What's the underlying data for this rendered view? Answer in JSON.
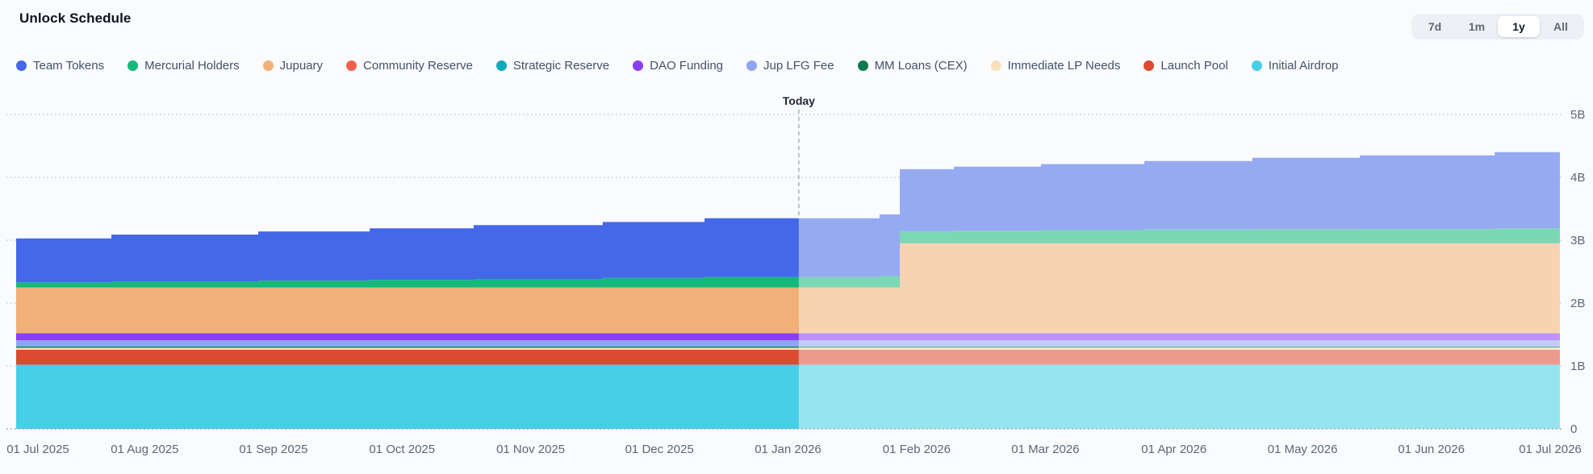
{
  "header": {
    "title": "Unlock Schedule"
  },
  "range_selector": {
    "options": [
      {
        "label": "7d",
        "active": false
      },
      {
        "label": "1m",
        "active": false
      },
      {
        "label": "1y",
        "active": true
      },
      {
        "label": "All",
        "active": false
      }
    ]
  },
  "legend_order": [
    "team-tokens",
    "mercurial-holders",
    "jupuary",
    "community-reserve",
    "strategic-reserve",
    "dao-funding",
    "jup-lfg-fee",
    "mm-loans-cex",
    "immediate-lp-needs",
    "launch-pool",
    "initial-airdrop"
  ],
  "chart_data": {
    "type": "area",
    "variant": "stacked-step",
    "title": "Unlock Schedule",
    "xlabel": "",
    "ylabel": "",
    "y_unit_note": "billions of tokens unlocked",
    "ylim": [
      0,
      5
    ],
    "y_ticks": [
      "0",
      "1B",
      "2B",
      "3B",
      "4B",
      "5B"
    ],
    "grid": "dotted-horizontal",
    "legend_position": "top",
    "x_ticks": [
      {
        "label": "01 Jul 2025",
        "f": 0.0
      },
      {
        "label": "01 Aug 2025",
        "f": 0.0833
      },
      {
        "label": "01 Sep 2025",
        "f": 0.1667
      },
      {
        "label": "01 Oct 2025",
        "f": 0.25
      },
      {
        "label": "01 Nov 2025",
        "f": 0.3333
      },
      {
        "label": "01 Dec 2025",
        "f": 0.4167
      },
      {
        "label": "01 Jan 2026",
        "f": 0.5
      },
      {
        "label": "01 Feb 2026",
        "f": 0.5833
      },
      {
        "label": "01 Mar 2026",
        "f": 0.6667
      },
      {
        "label": "01 Apr 2026",
        "f": 0.75
      },
      {
        "label": "01 May 2026",
        "f": 0.8333
      },
      {
        "label": "01 Jun 2026",
        "f": 0.9167
      },
      {
        "label": "01 Jul 2026",
        "f": 1.0
      }
    ],
    "today": {
      "label": "Today",
      "f": 0.507
    },
    "future_fade_mix": 0.44,
    "breakpoints": [
      0,
      0.0617,
      0.1568,
      0.229,
      0.2964,
      0.38,
      0.4459,
      0.5593,
      0.5724,
      0.6074,
      0.6639,
      0.7308,
      0.8008,
      0.8704,
      0.9577
    ],
    "series": [
      {
        "id": "initial-airdrop",
        "name": "Initial Airdrop",
        "color": "#46cfe6",
        "values": [
          1.02,
          1.02,
          1.02,
          1.02,
          1.02,
          1.02,
          1.02,
          1.02,
          1.02,
          1.02,
          1.02,
          1.02,
          1.02,
          1.02,
          1.02
        ]
      },
      {
        "id": "launch-pool",
        "name": "Launch Pool",
        "color": "#dc4a31",
        "values": [
          0.24,
          0.24,
          0.24,
          0.24,
          0.24,
          0.24,
          0.24,
          0.24,
          0.24,
          0.24,
          0.24,
          0.24,
          0.24,
          0.24,
          0.24
        ]
      },
      {
        "id": "immediate-lp-needs",
        "name": "Immediate LP Needs",
        "color": "#fadfbd",
        "values": [
          0.03,
          0.03,
          0.03,
          0.03,
          0.03,
          0.03,
          0.03,
          0.03,
          0.03,
          0.03,
          0.03,
          0.03,
          0.03,
          0.03,
          0.03
        ]
      },
      {
        "id": "mm-loans-cex",
        "name": "MM Loans (CEX)",
        "color": "#0b7b4b",
        "values": [
          0.02,
          0.02,
          0.02,
          0.02,
          0.02,
          0.02,
          0.02,
          0.02,
          0.02,
          0.02,
          0.02,
          0.02,
          0.02,
          0.02,
          0.02
        ]
      },
      {
        "id": "jup-lfg-fee",
        "name": "Jup LFG Fee",
        "color": "#8fa4f5",
        "values": [
          0.1,
          0.1,
          0.1,
          0.1,
          0.1,
          0.1,
          0.1,
          0.1,
          0.1,
          0.1,
          0.1,
          0.1,
          0.1,
          0.1,
          0.1
        ]
      },
      {
        "id": "dao-funding",
        "name": "DAO Funding",
        "color": "#8b3df2",
        "values": [
          0.11,
          0.11,
          0.11,
          0.11,
          0.11,
          0.11,
          0.11,
          0.11,
          0.11,
          0.11,
          0.11,
          0.11,
          0.11,
          0.11,
          0.11
        ]
      },
      {
        "id": "strategic-reserve",
        "name": "Strategic Reserve",
        "color": "#12a9bd",
        "values": [
          0,
          0,
          0,
          0,
          0,
          0,
          0,
          0,
          0,
          0,
          0,
          0,
          0,
          0,
          0
        ]
      },
      {
        "id": "community-reserve",
        "name": "Community Reserve",
        "color": "#f4604a",
        "values": [
          0,
          0,
          0,
          0,
          0,
          0,
          0,
          0,
          0,
          0,
          0,
          0,
          0,
          0,
          0
        ]
      },
      {
        "id": "jupuary",
        "name": "Jupuary",
        "color": "#f0b077",
        "values": [
          0.73,
          0.73,
          0.73,
          0.73,
          0.73,
          0.73,
          0.73,
          0.73,
          1.43,
          1.43,
          1.43,
          1.43,
          1.43,
          1.43,
          1.43
        ]
      },
      {
        "id": "mercurial-holders",
        "name": "Mercurial Holders",
        "color": "#14b87d",
        "values": [
          0.08,
          0.095,
          0.11,
          0.12,
          0.135,
          0.15,
          0.165,
          0.18,
          0.19,
          0.2,
          0.21,
          0.22,
          0.225,
          0.23,
          0.24
        ]
      },
      {
        "id": "team-tokens",
        "name": "Team Tokens",
        "color": "#4468e8",
        "values": [
          0.7,
          0.745,
          0.78,
          0.82,
          0.855,
          0.89,
          0.935,
          0.98,
          0.99,
          1.02,
          1.05,
          1.09,
          1.135,
          1.17,
          1.21
        ]
      }
    ]
  }
}
